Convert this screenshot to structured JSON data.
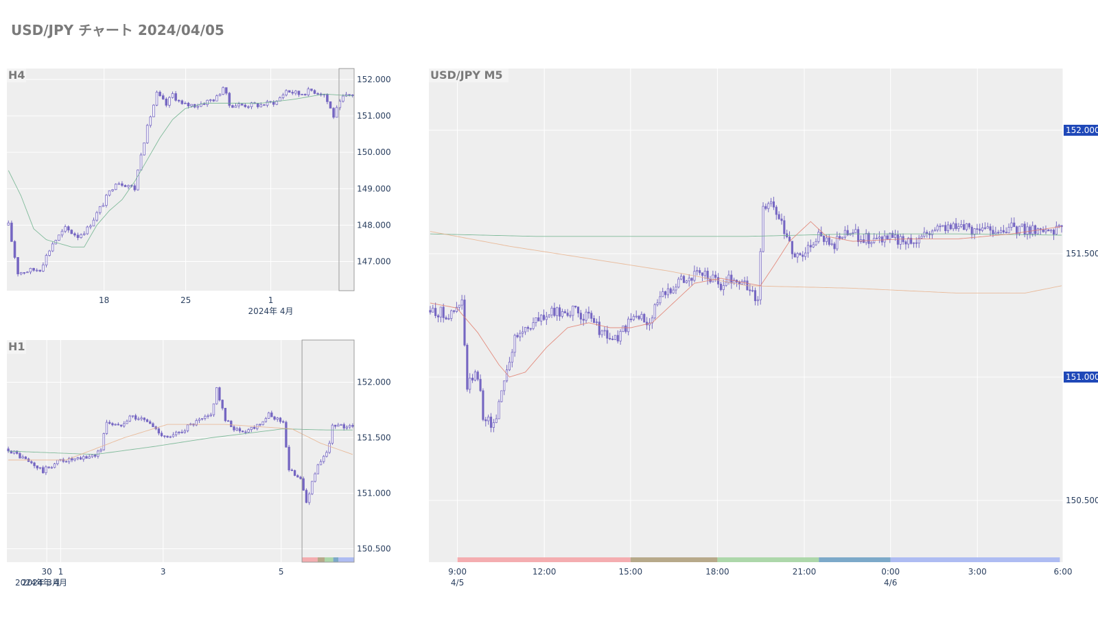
{
  "page": {
    "title": "USD/JPY チャート 2024/04/05"
  },
  "colors": {
    "background": "#ffffff",
    "plot_bg": "#eeeeee",
    "grid": "#ffffff",
    "candle": "#7566c2",
    "ma_green": "#6ab08a",
    "ma_red": "#e07a6a",
    "ma_orange": "#e8b08a",
    "tick_text": "#2a3f5f",
    "panel_label": "#7a7a7a",
    "price_badge_bg": "#1f48b8",
    "price_badge_text": "#ffffff"
  },
  "chart_data": [
    {
      "name": "H4",
      "type": "candlestick",
      "title": "H4",
      "ylim": [
        146.2,
        152.3
      ],
      "y_ticks": [
        "147.000",
        "148.000",
        "149.000",
        "150.000",
        "151.000",
        "152.000"
      ],
      "y_tick_values": [
        147,
        148,
        149,
        150,
        151,
        152
      ],
      "x_tick_labels": [
        "18",
        "25",
        "1"
      ],
      "x_tick_positions": [
        0.28,
        0.515,
        0.76
      ],
      "x_secondary_label": "2024年 4月",
      "n_candles": 110,
      "close_trend": [
        [
          0,
          148.0
        ],
        [
          3,
          146.7
        ],
        [
          10,
          146.8
        ],
        [
          14,
          147.5
        ],
        [
          18,
          147.9
        ],
        [
          22,
          147.7
        ],
        [
          25,
          147.9
        ],
        [
          30,
          148.6
        ],
        [
          34,
          149.2
        ],
        [
          38,
          149.1
        ],
        [
          40,
          149.0
        ],
        [
          42,
          150.0
        ],
        [
          45,
          151.0
        ],
        [
          47,
          151.6
        ],
        [
          50,
          151.3
        ],
        [
          52,
          151.6
        ],
        [
          55,
          151.3
        ],
        [
          60,
          151.3
        ],
        [
          66,
          151.5
        ],
        [
          68,
          151.8
        ],
        [
          70,
          151.3
        ],
        [
          80,
          151.3
        ],
        [
          85,
          151.4
        ],
        [
          88,
          151.7
        ],
        [
          92,
          151.6
        ],
        [
          96,
          151.7
        ],
        [
          100,
          151.6
        ],
        [
          103,
          151.0
        ],
        [
          106,
          151.5
        ],
        [
          109,
          151.6
        ]
      ],
      "ma_green": [
        [
          0,
          149.5
        ],
        [
          4,
          148.8
        ],
        [
          8,
          147.9
        ],
        [
          12,
          147.6
        ],
        [
          16,
          147.5
        ],
        [
          20,
          147.4
        ],
        [
          24,
          147.4
        ],
        [
          28,
          148.0
        ],
        [
          32,
          148.4
        ],
        [
          36,
          148.7
        ],
        [
          40,
          149.2
        ],
        [
          44,
          149.8
        ],
        [
          48,
          150.4
        ],
        [
          52,
          150.9
        ],
        [
          56,
          151.2
        ],
        [
          62,
          151.35
        ],
        [
          70,
          151.35
        ],
        [
          80,
          151.35
        ],
        [
          90,
          151.45
        ],
        [
          100,
          151.6
        ],
        [
          109,
          151.55
        ]
      ]
    },
    {
      "name": "H1",
      "type": "candlestick",
      "title": "H1",
      "ylim": [
        150.38,
        152.38
      ],
      "y_ticks": [
        "150.500",
        "151.000",
        "151.500",
        "152.000"
      ],
      "y_tick_values": [
        150.5,
        151,
        151.5,
        152
      ],
      "x_tick_labels": [
        "30",
        "1",
        "3",
        "5"
      ],
      "x_tick_positions": [
        0.115,
        0.155,
        0.45,
        0.79
      ],
      "x_secondary_labels": [
        "2024年 3月",
        "2024年 4月"
      ],
      "n_candles": 120,
      "close_trend": [
        [
          0,
          151.4
        ],
        [
          6,
          151.3
        ],
        [
          12,
          151.2
        ],
        [
          18,
          151.3
        ],
        [
          24,
          151.3
        ],
        [
          30,
          151.35
        ],
        [
          32,
          151.4
        ],
        [
          34,
          151.65
        ],
        [
          38,
          151.6
        ],
        [
          42,
          151.7
        ],
        [
          48,
          151.65
        ],
        [
          52,
          151.55
        ],
        [
          56,
          151.5
        ],
        [
          62,
          151.6
        ],
        [
          70,
          151.7
        ],
        [
          72,
          151.95
        ],
        [
          75,
          151.65
        ],
        [
          80,
          151.55
        ],
        [
          85,
          151.6
        ],
        [
          90,
          151.7
        ],
        [
          95,
          151.65
        ],
        [
          97,
          151.2
        ],
        [
          101,
          151.15
        ],
        [
          103,
          150.9
        ],
        [
          106,
          151.2
        ],
        [
          110,
          151.35
        ],
        [
          112,
          151.6
        ],
        [
          116,
          151.6
        ],
        [
          119,
          151.62
        ]
      ],
      "ma_green": [
        [
          0,
          151.38
        ],
        [
          30,
          151.35
        ],
        [
          50,
          151.42
        ],
        [
          70,
          151.5
        ],
        [
          95,
          151.58
        ],
        [
          110,
          151.57
        ],
        [
          119,
          151.57
        ]
      ],
      "ma_orange": [
        [
          0,
          151.3
        ],
        [
          20,
          151.3
        ],
        [
          40,
          151.5
        ],
        [
          55,
          151.62
        ],
        [
          75,
          151.62
        ],
        [
          98,
          151.58
        ],
        [
          108,
          151.45
        ],
        [
          119,
          151.35
        ]
      ],
      "session_bar": [
        {
          "from": 0.85,
          "to": 0.895,
          "color": "#f4a5a8"
        },
        {
          "from": 0.895,
          "to": 0.915,
          "color": "#b0a17e"
        },
        {
          "from": 0.915,
          "to": 0.94,
          "color": "#a5d4a2"
        },
        {
          "from": 0.94,
          "to": 0.955,
          "color": "#6fa1c4"
        },
        {
          "from": 0.955,
          "to": 1.0,
          "color": "#a6b6f2"
        }
      ]
    },
    {
      "name": "M5",
      "type": "candlestick",
      "title": "USD/JPY M5",
      "ylim": [
        150.25,
        152.25
      ],
      "y_ticks": [
        "150.500",
        "151.000",
        "151.500",
        "152.000"
      ],
      "y_tick_values": [
        150.5,
        151,
        151.5,
        152
      ],
      "highlighted_y_ticks": [
        "151.000",
        "152.000"
      ],
      "x_tick_labels": [
        "9:00",
        "12:00",
        "15:00",
        "18:00",
        "21:00",
        "0:00",
        "3:00",
        "6:00"
      ],
      "x_tick_positions": [
        0.045,
        0.182,
        0.318,
        0.455,
        0.592,
        0.728,
        0.865,
        1.0
      ],
      "x_secondary_labels": [
        {
          "text": "4/5",
          "at": 0.045
        },
        {
          "text": "4/6",
          "at": 0.728
        }
      ],
      "n_candles": 240,
      "close_trend": [
        [
          0,
          151.27
        ],
        [
          8,
          151.25
        ],
        [
          12,
          151.3
        ],
        [
          14,
          150.95
        ],
        [
          16,
          151.0
        ],
        [
          18,
          151.0
        ],
        [
          20,
          150.85
        ],
        [
          24,
          150.8
        ],
        [
          26,
          150.9
        ],
        [
          28,
          151.0
        ],
        [
          32,
          151.15
        ],
        [
          36,
          151.2
        ],
        [
          44,
          151.25
        ],
        [
          52,
          151.27
        ],
        [
          58,
          151.25
        ],
        [
          62,
          151.22
        ],
        [
          66,
          151.17
        ],
        [
          70,
          151.15
        ],
        [
          74,
          151.2
        ],
        [
          78,
          151.25
        ],
        [
          82,
          151.22
        ],
        [
          86,
          151.3
        ],
        [
          90,
          151.35
        ],
        [
          94,
          151.4
        ],
        [
          98,
          151.4
        ],
        [
          102,
          151.42
        ],
        [
          106,
          151.4
        ],
        [
          110,
          151.37
        ],
        [
          114,
          151.4
        ],
        [
          118,
          151.38
        ],
        [
          122,
          151.35
        ],
        [
          124,
          151.3
        ],
        [
          126,
          151.7
        ],
        [
          128,
          151.7
        ],
        [
          132,
          151.65
        ],
        [
          134,
          151.58
        ],
        [
          138,
          151.5
        ],
        [
          142,
          151.5
        ],
        [
          144,
          151.55
        ],
        [
          148,
          151.58
        ],
        [
          152,
          151.52
        ],
        [
          156,
          151.57
        ],
        [
          160,
          151.58
        ],
        [
          166,
          151.56
        ],
        [
          172,
          151.57
        ],
        [
          178,
          151.55
        ],
        [
          184,
          151.56
        ],
        [
          190,
          151.6
        ],
        [
          196,
          151.62
        ],
        [
          202,
          151.6
        ],
        [
          210,
          151.6
        ],
        [
          220,
          151.6
        ],
        [
          230,
          151.6
        ],
        [
          239,
          151.6
        ]
      ],
      "ma_red": [
        [
          0,
          151.3
        ],
        [
          10,
          151.28
        ],
        [
          18,
          151.18
        ],
        [
          26,
          151.05
        ],
        [
          30,
          151.0
        ],
        [
          36,
          151.02
        ],
        [
          44,
          151.12
        ],
        [
          52,
          151.2
        ],
        [
          60,
          151.22
        ],
        [
          68,
          151.2
        ],
        [
          76,
          151.2
        ],
        [
          84,
          151.22
        ],
        [
          92,
          151.3
        ],
        [
          100,
          151.38
        ],
        [
          110,
          151.4
        ],
        [
          120,
          151.38
        ],
        [
          125,
          151.37
        ],
        [
          130,
          151.45
        ],
        [
          136,
          151.55
        ],
        [
          144,
          151.63
        ],
        [
          150,
          151.57
        ],
        [
          160,
          151.55
        ],
        [
          180,
          151.56
        ],
        [
          200,
          151.56
        ],
        [
          220,
          151.58
        ],
        [
          239,
          151.61
        ]
      ],
      "ma_green": [
        [
          0,
          151.58
        ],
        [
          40,
          151.57
        ],
        [
          80,
          151.57
        ],
        [
          120,
          151.57
        ],
        [
          160,
          151.58
        ],
        [
          200,
          151.58
        ],
        [
          239,
          151.575
        ]
      ],
      "ma_orange": [
        [
          0,
          151.59
        ],
        [
          30,
          151.53
        ],
        [
          60,
          151.48
        ],
        [
          90,
          151.43
        ],
        [
          120,
          151.37
        ],
        [
          160,
          151.36
        ],
        [
          200,
          151.34
        ],
        [
          225,
          151.34
        ],
        [
          239,
          151.37
        ]
      ],
      "session_bar": [
        {
          "from": 0.045,
          "to": 0.318,
          "color": "#f4a5a8"
        },
        {
          "from": 0.318,
          "to": 0.455,
          "color": "#b0a17e"
        },
        {
          "from": 0.455,
          "to": 0.615,
          "color": "#a5d4a2"
        },
        {
          "from": 0.615,
          "to": 0.728,
          "color": "#6fa1c4"
        },
        {
          "from": 0.728,
          "to": 0.995,
          "color": "#a6b6f2"
        }
      ]
    }
  ]
}
